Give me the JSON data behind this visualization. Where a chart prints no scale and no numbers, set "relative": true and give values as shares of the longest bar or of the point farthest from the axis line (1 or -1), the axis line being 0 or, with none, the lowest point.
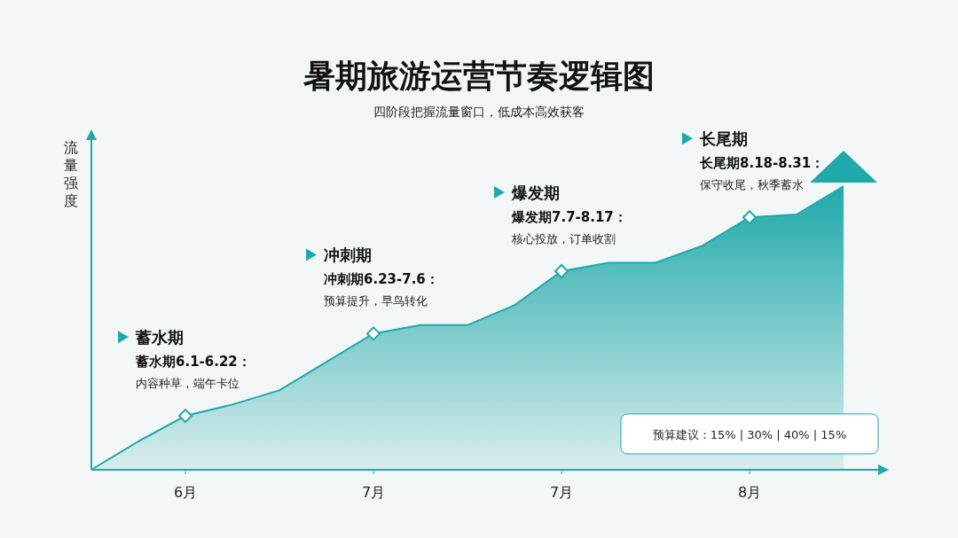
{
  "chart_data": {
    "type": "area",
    "title": "暑期旅游运营节奏逻辑图",
    "subtitle": "四阶段把握流量窗口，低成本高效获客",
    "ylabel": "流量强度",
    "relative": true,
    "categories": [
      null,
      null,
      "6月",
      null,
      null,
      null,
      "7月",
      null,
      null,
      null,
      "7月",
      null,
      null,
      null,
      "8月",
      null,
      null
    ],
    "series": [
      {
        "type": "area",
        "color": "#1fa9aa",
        "values": [
          0,
          0.1,
          0.19,
          0.23,
          0.28,
          0.38,
          0.48,
          0.51,
          0.51,
          0.58,
          0.7,
          0.73,
          0.73,
          0.79,
          0.89,
          0.9,
          1.0
        ]
      },
      {
        "type": "scatter",
        "marker": "diamond",
        "color": "#1fa9aa",
        "values": [
          null,
          null,
          0.19,
          null,
          null,
          null,
          0.48,
          null,
          null,
          null,
          0.7,
          null,
          null,
          null,
          0.89,
          null,
          null
        ]
      }
    ],
    "annotations": [
      "蓄水期",
      "蓄水期6.1-6.22：",
      "内容种草，端午卡位",
      "冲刺期",
      "冲刺期6.23-7.6：",
      "预算提升，早鸟转化",
      "爆发期",
      "爆发期7.7-8.17：",
      "核心投放，订单收割",
      "长尾期",
      "长尾期8.18-8.31：",
      "保守收尾，秋季蓄水",
      "预算建议：15% | 30% | 40% | 15%"
    ]
  }
}
